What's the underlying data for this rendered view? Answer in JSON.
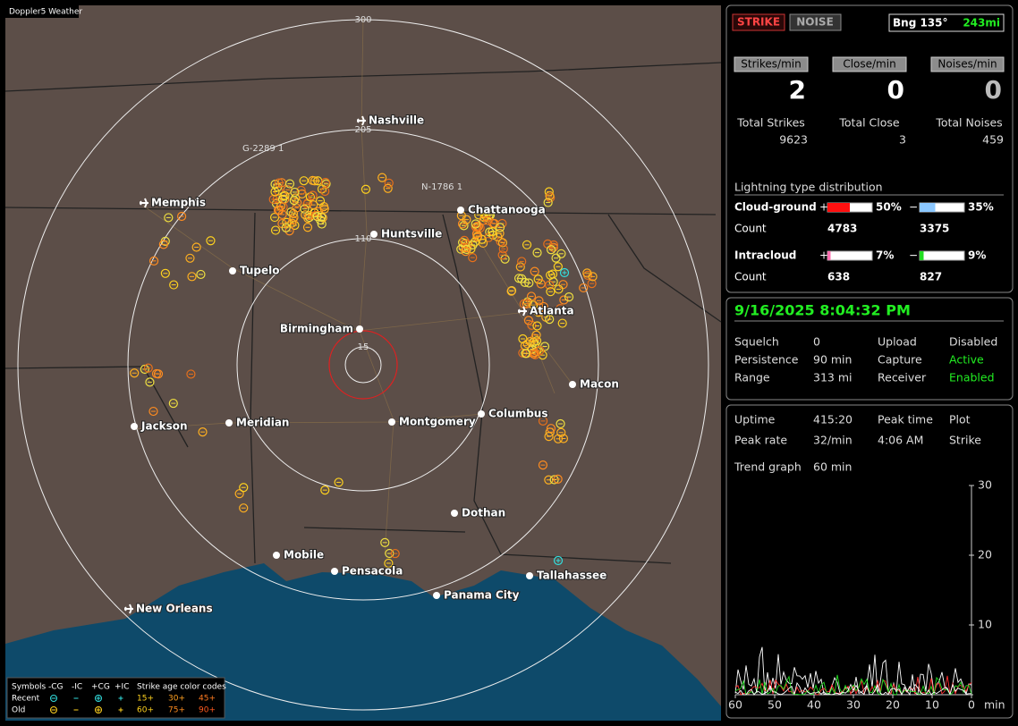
{
  "map": {
    "badge": "Doppler5 Weather",
    "ring_labels": [
      "300",
      "205",
      "110",
      "15"
    ],
    "cities": [
      "Nashville",
      "Memphis",
      "Chattanooga",
      "Huntsville",
      "Tupelo",
      "Atlanta",
      "Birmingham",
      "Macon",
      "Jackson",
      "Meridian",
      "Montgomery",
      "Columbus",
      "Dothan",
      "Mobile",
      "Pensacola",
      "Tallahassee",
      "Panama City",
      "New Orleans"
    ],
    "markers": [
      "G-2289 1",
      "N-1786 1"
    ],
    "legend": {
      "header": [
        "Symbols",
        "-CG",
        "-IC",
        "+CG",
        "+IC",
        "Strike age color codes"
      ],
      "rows": [
        {
          "label": "Recent",
          "ages": [
            "15+",
            "30+",
            "45+"
          ]
        },
        {
          "label": "Old",
          "ages": [
            "60+",
            "75+",
            "90+"
          ]
        }
      ]
    }
  },
  "status": {
    "strike": "STRIKE",
    "noise": "NOISE",
    "bearing": "Bng 135°",
    "distance": "243mi"
  },
  "rates": [
    {
      "label": "Strikes/min",
      "value": 2
    },
    {
      "label": "Close/min",
      "value": 0
    },
    {
      "label": "Noises/min",
      "value": 0
    }
  ],
  "totals": [
    {
      "label": "Total Strikes",
      "value": 9623
    },
    {
      "label": "Total Close",
      "value": 3
    },
    {
      "label": "Total Noises",
      "value": 459
    }
  ],
  "distribution": {
    "title": "Lightning type distribution",
    "signs": [
      "+",
      "−"
    ],
    "count_label": "Count",
    "rows": [
      {
        "label": "Cloud-ground",
        "pos": {
          "value": 50,
          "label": "50%"
        },
        "neg": {
          "value": 35,
          "label": "35%"
        },
        "pos_count": 4783,
        "neg_count": 3375
      },
      {
        "label": "Intracloud",
        "pos": {
          "value": 7,
          "label": "7%"
        },
        "neg": {
          "value": 9,
          "label": "9%"
        },
        "pos_count": 638,
        "neg_count": 827
      }
    ]
  },
  "settings": {
    "datetime": "9/16/2025 8:04:32 PM",
    "items": [
      {
        "label": "Squelch",
        "value": "0"
      },
      {
        "label": "Upload",
        "value": "Disabled"
      },
      {
        "label": "Persistence",
        "value": "90 min"
      },
      {
        "label": "Capture",
        "value": "Active"
      },
      {
        "label": "Range",
        "value": "313 mi"
      },
      {
        "label": "Receiver",
        "value": "Enabled"
      }
    ]
  },
  "stats": [
    {
      "label": "Uptime",
      "value": "415:20"
    },
    {
      "label": "Peak rate",
      "value": "32/min"
    },
    {
      "label": "Peak time",
      "value": "4:06 AM"
    },
    {
      "label": "Plot",
      "value": "Strike"
    },
    {
      "label": "Trend graph",
      "value": "60 min"
    }
  ],
  "trend": {
    "ylim": [
      0,
      30
    ],
    "yticks": [
      10,
      20,
      30
    ],
    "xlim": [
      60,
      0
    ],
    "xticks": [
      60,
      50,
      40,
      30,
      20,
      10,
      0
    ],
    "x_unit": "min"
  }
}
